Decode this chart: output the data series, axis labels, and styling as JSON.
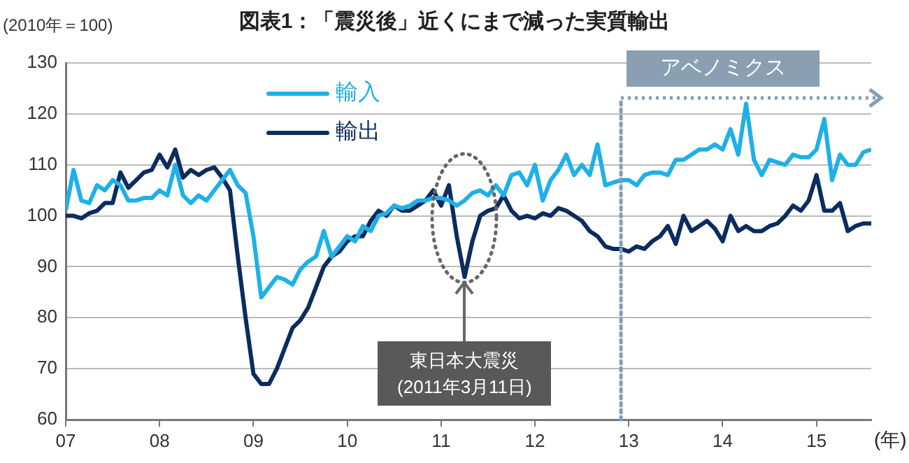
{
  "chart_data": {
    "type": "line",
    "title": "図表1：「震災後」近くにまで減った実質輸出",
    "ylabel": "(2010年＝100)",
    "xlabel": "(年)",
    "x": [
      "2007-01",
      "2007-02",
      "2007-03",
      "2007-04",
      "2007-05",
      "2007-06",
      "2007-07",
      "2007-08",
      "2007-09",
      "2007-10",
      "2007-11",
      "2007-12",
      "2008-01",
      "2008-02",
      "2008-03",
      "2008-04",
      "2008-05",
      "2008-06",
      "2008-07",
      "2008-08",
      "2008-09",
      "2008-10",
      "2008-11",
      "2008-12",
      "2009-01",
      "2009-02",
      "2009-03",
      "2009-04",
      "2009-05",
      "2009-06",
      "2009-07",
      "2009-08",
      "2009-09",
      "2009-10",
      "2009-11",
      "2009-12",
      "2010-01",
      "2010-02",
      "2010-03",
      "2010-04",
      "2010-05",
      "2010-06",
      "2010-07",
      "2010-08",
      "2010-09",
      "2010-10",
      "2010-11",
      "2010-12",
      "2011-01",
      "2011-02",
      "2011-03",
      "2011-04",
      "2011-05",
      "2011-06",
      "2011-07",
      "2011-08",
      "2011-09",
      "2011-10",
      "2011-11",
      "2011-12",
      "2012-01",
      "2012-02",
      "2012-03",
      "2012-04",
      "2012-05",
      "2012-06",
      "2012-07",
      "2012-08",
      "2012-09",
      "2012-10",
      "2012-11",
      "2012-12",
      "2013-01",
      "2013-02",
      "2013-03",
      "2013-04",
      "2013-05",
      "2013-06",
      "2013-07",
      "2013-08",
      "2013-09",
      "2013-10",
      "2013-11",
      "2013-12",
      "2014-01",
      "2014-02",
      "2014-03",
      "2014-04",
      "2014-05",
      "2014-06",
      "2014-07",
      "2014-08",
      "2014-09",
      "2014-10",
      "2014-11",
      "2014-12",
      "2015-01",
      "2015-02",
      "2015-03",
      "2015-04",
      "2015-05",
      "2015-06",
      "2015-07",
      "2015-08"
    ],
    "series": [
      {
        "name": "輸入",
        "color": "#1fb0e8",
        "values": [
          101,
          109,
          103,
          102.5,
          106,
          105,
          107,
          106,
          103,
          103,
          103.5,
          103.5,
          105,
          104,
          110,
          104,
          102.5,
          104,
          103,
          105,
          107,
          109,
          106,
          104.5,
          96,
          84,
          86,
          88,
          87.5,
          86.5,
          89.5,
          91,
          92,
          97,
          92,
          94,
          96,
          95,
          98,
          97,
          100,
          100.5,
          102,
          101.5,
          102,
          103,
          103,
          103.5,
          103.5,
          103,
          102,
          103,
          104.5,
          105,
          104,
          106,
          104,
          108,
          108.5,
          106,
          110,
          103,
          107,
          109,
          112,
          108,
          110,
          108,
          114,
          106,
          106.5,
          107,
          107,
          106,
          108,
          108.5,
          108.5,
          108,
          111,
          111,
          112,
          113,
          113,
          114,
          113,
          117,
          112,
          122,
          111,
          108,
          111,
          110.5,
          110,
          112,
          111.5,
          111.5,
          113,
          119,
          107,
          112,
          110,
          110,
          112.5,
          113
        ]
      },
      {
        "name": "輸出",
        "color": "#0b2c5e",
        "values": [
          100,
          100,
          99.5,
          100.5,
          101,
          102.5,
          102.5,
          108.5,
          105.5,
          107,
          108.5,
          109,
          112,
          109.5,
          113,
          107.5,
          109,
          108,
          109,
          109.5,
          107.5,
          105,
          92,
          80,
          69,
          67,
          67,
          70,
          74,
          78,
          79.5,
          82,
          86,
          90,
          92,
          93,
          95,
          96,
          96,
          99,
          101,
          100,
          102,
          101,
          101,
          102,
          103,
          105,
          102,
          106,
          96,
          88,
          95,
          100,
          101,
          101.5,
          104,
          101,
          99.5,
          100,
          99.5,
          100.5,
          100,
          101.5,
          101,
          100,
          99,
          97,
          96,
          94,
          93.5,
          93.5,
          93,
          94,
          93.5,
          95,
          96,
          98,
          94.5,
          100,
          97,
          98,
          99,
          97.5,
          95,
          100,
          97,
          98,
          97,
          97,
          98,
          98.5,
          100,
          102,
          101,
          103,
          108,
          101,
          101,
          102.5,
          97,
          98,
          98.5,
          98.5
        ]
      }
    ],
    "xlim": [
      "2007-01",
      "2015-08"
    ],
    "xticks": [
      {
        "value": "2007-01",
        "label": "07"
      },
      {
        "value": "2008-01",
        "label": "08"
      },
      {
        "value": "2009-01",
        "label": "09"
      },
      {
        "value": "2010-01",
        "label": "10"
      },
      {
        "value": "2011-01",
        "label": "11"
      },
      {
        "value": "2012-01",
        "label": "12"
      },
      {
        "value": "2013-01",
        "label": "13"
      },
      {
        "value": "2014-01",
        "label": "14"
      },
      {
        "value": "2015-01",
        "label": "15"
      }
    ],
    "ylim": [
      60,
      130
    ],
    "yticks": [
      60,
      70,
      80,
      90,
      100,
      110,
      120,
      130
    ],
    "ref_lines": [
      {
        "axis": "x",
        "value": "2012-12",
        "label": "アベノミクス",
        "color": "#7f9fb5",
        "line_style": "dotted"
      }
    ],
    "annotations": [
      {
        "text": "東日本大震災\n(2011年3月11日)",
        "x": "2011-04",
        "y": 88
      }
    ],
    "grid": "y",
    "legend": "top left",
    "line_style": "solid",
    "marker": "none"
  }
}
